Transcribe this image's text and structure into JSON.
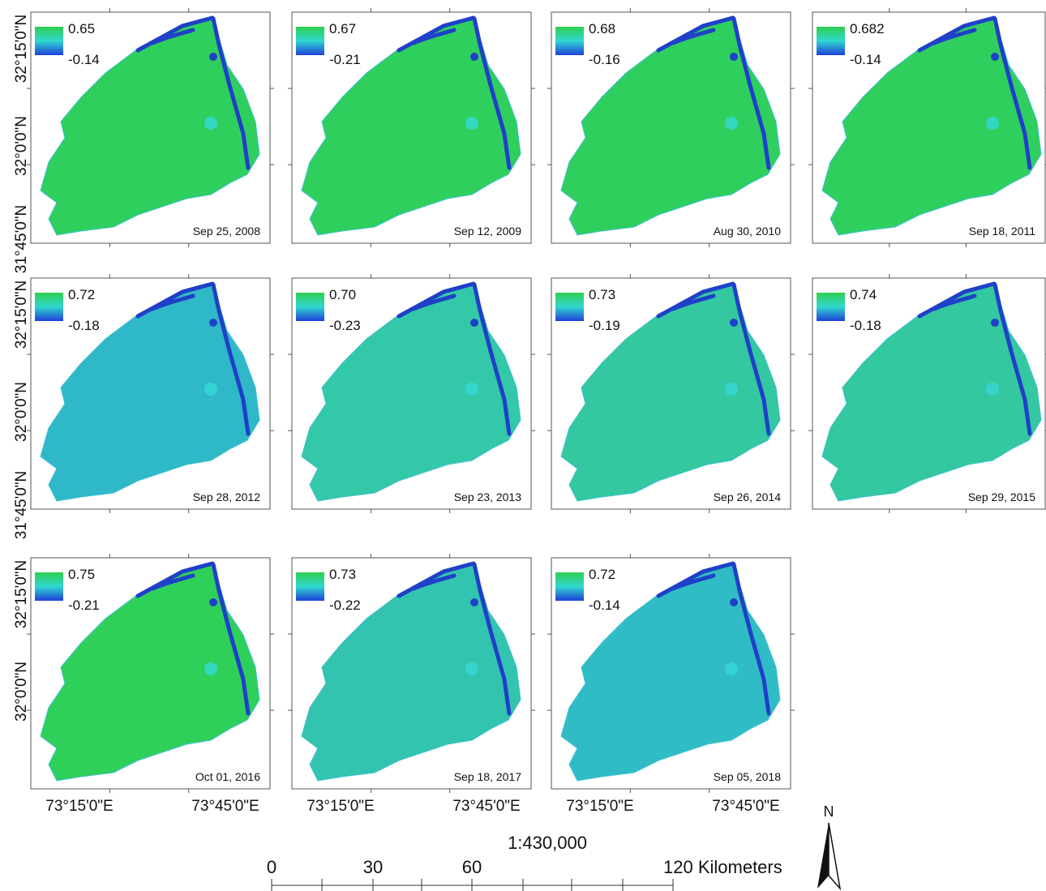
{
  "panels": [
    {
      "max": "0.65",
      "min": "-0.14",
      "date": "Sep 25, 2008",
      "color": "#2fcf5e"
    },
    {
      "max": "0.67",
      "min": "-0.21",
      "date": "Sep 12, 2009",
      "color": "#2fcf5e"
    },
    {
      "max": "0.68",
      "min": "-0.16",
      "date": "Aug 30, 2010",
      "color": "#2fcf5e"
    },
    {
      "max": "0.682",
      "min": "-0.14",
      "date": "Sep 18, 2011",
      "color": "#2fcf5e"
    },
    {
      "max": "0.72",
      "min": "-0.18",
      "date": "Sep 28, 2012",
      "color": "#2fb8c8"
    },
    {
      "max": "0.70",
      "min": "-0.23",
      "date": "Sep 23, 2013",
      "color": "#33c8a8"
    },
    {
      "max": "0.73",
      "min": "-0.19",
      "date": "Sep 26, 2014",
      "color": "#33c8a0"
    },
    {
      "max": "0.74",
      "min": "-0.18",
      "date": "Sep 29, 2015",
      "color": "#33c8a0"
    },
    {
      "max": "0.75",
      "min": "-0.21",
      "date": "Oct 01, 2016",
      "color": "#2fd05a"
    },
    {
      "max": "0.73",
      "min": "-0.22",
      "date": "Sep 18, 2017",
      "color": "#33c4b0"
    },
    {
      "max": "0.72",
      "min": "-0.14",
      "date": "Sep 05, 2018",
      "color": "#30bcc4"
    }
  ],
  "left_labels": [
    [
      "32°15'0\"N",
      "32°0'0\"N",
      "31°45'0\"N"
    ],
    [
      "32°15'0\"N",
      "32°0'0\"N",
      "31°45'0\"N"
    ],
    [
      "32°15'0\"N",
      "32°0'0\"N"
    ]
  ],
  "bottom_labels": [
    [
      "73°15'0\"E",
      "73°45'0\"E"
    ],
    [
      "73°15'0\"E",
      "73°45'0\"E"
    ],
    [
      "73°15'0\"E",
      "73°45'0\"E"
    ]
  ],
  "scale": {
    "ratio": "1:430,000",
    "labels": [
      "0",
      "30",
      "60",
      "120 Kilometers"
    ]
  },
  "north": "N"
}
